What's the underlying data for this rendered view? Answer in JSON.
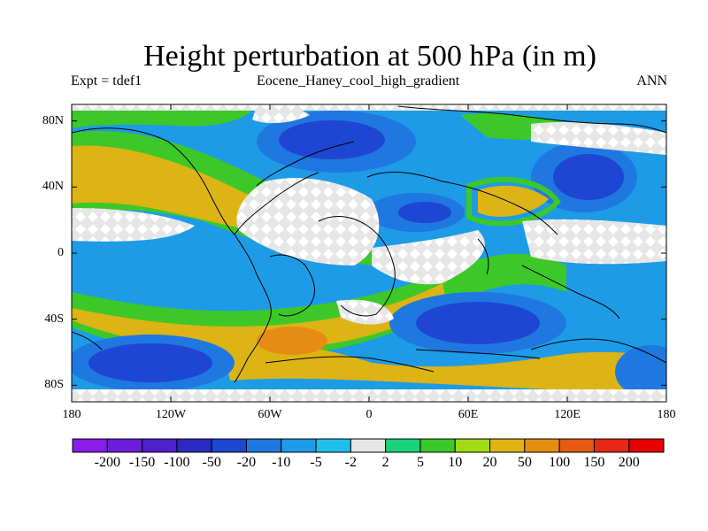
{
  "title": "Height perturbation at 500 hPa (in m)",
  "subtitle_left": "Expt = tdef1",
  "subtitle_center": "Eocene_Haney_cool_high_gradient",
  "subtitle_right": "ANN",
  "lat_labels": [
    "80N",
    "40N",
    "0",
    "40S",
    "80S"
  ],
  "lon_labels": [
    "180",
    "120W",
    "60W",
    "0",
    "60E",
    "120E",
    "180"
  ],
  "colorbar": {
    "levels": [
      "-200",
      "-150",
      "-100",
      "-50",
      "-20",
      "-10",
      "-5",
      "-2",
      "2",
      "5",
      "10",
      "20",
      "50",
      "100",
      "150",
      "200"
    ],
    "colors": [
      "#8a1ee6",
      "#6a1ed8",
      "#5020cc",
      "#2a2ac0",
      "#1e46d2",
      "#1e78e0",
      "#1e9be6",
      "#1ec0ea",
      "#e6e6e6",
      "#19d27a",
      "#3cc828",
      "#a0dc14",
      "#dcb414",
      "#e68c14",
      "#e65a14",
      "#e62814",
      "#e60000"
    ]
  },
  "map": {
    "projection": "cylindrical-equidistant",
    "lat_range": [
      -90,
      90
    ],
    "lon_range": [
      -180,
      180
    ],
    "lat_ticks": [
      80,
      40,
      0,
      -40,
      -80
    ],
    "lon_ticks": [
      -180,
      -120,
      -60,
      0,
      60,
      120,
      180
    ]
  }
}
